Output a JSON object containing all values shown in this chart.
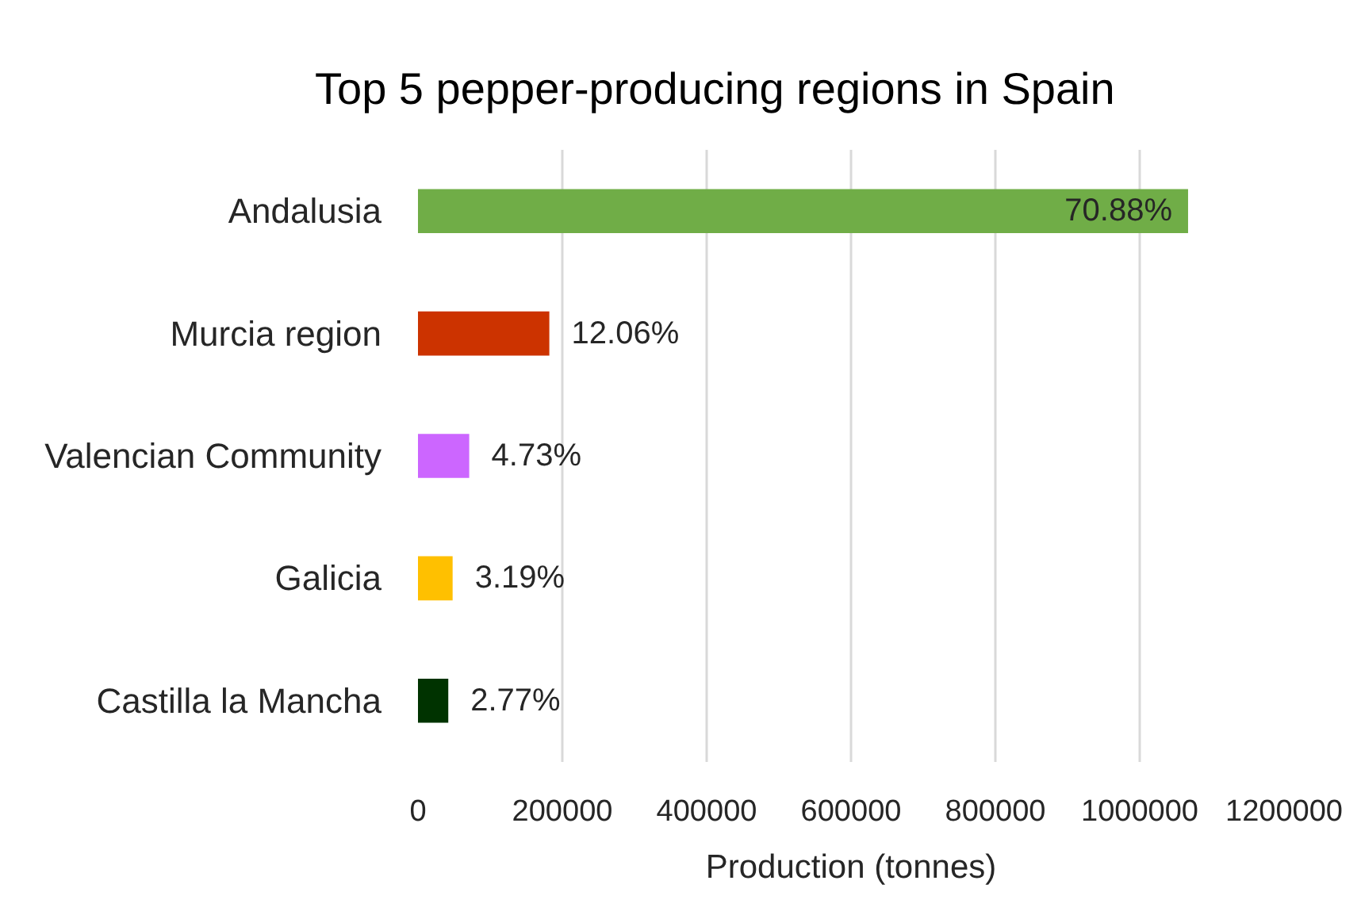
{
  "chart_data": {
    "type": "bar",
    "orientation": "horizontal",
    "title": "Top 5 pepper-producing regions in Spain",
    "xlabel": "Production (tonnes)",
    "categories": [
      "Andalusia",
      "Murcia region",
      "Valencian Community",
      "Galicia",
      "Castilla la Mancha"
    ],
    "values": [
      1067000,
      182000,
      71000,
      48000,
      42000
    ],
    "colors": [
      "#70ad47",
      "#cc3300",
      "#cc66ff",
      "#ffc000",
      "#003300"
    ],
    "annotations": [
      {
        "text": "70.88%",
        "x": 1067000,
        "y": "Andalusia"
      },
      {
        "text": "12.06%",
        "x": 182000,
        "y": "Murcia region"
      },
      {
        "text": "4.73%",
        "x": 71000,
        "y": "Valencian Community"
      },
      {
        "text": "3.19%",
        "x": 48000,
        "y": "Galicia"
      },
      {
        "text": "2.77%",
        "x": 42000,
        "y": "Castilla la Mancha"
      }
    ],
    "xlim": [
      0,
      1200000
    ],
    "xticks": [
      0,
      200000,
      400000,
      600000,
      800000,
      1000000,
      1200000
    ],
    "grid": "x"
  }
}
